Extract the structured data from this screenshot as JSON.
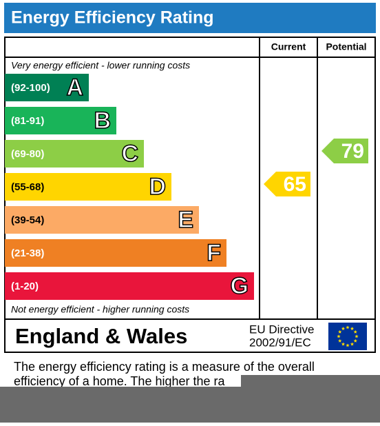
{
  "title": "Energy Efficiency Rating",
  "headers": {
    "current": "Current",
    "potential": "Potential"
  },
  "top_note": "Very energy efficient - lower running costs",
  "bottom_note": "Not energy efficient - higher running costs",
  "bands": [
    {
      "range": "(92-100)",
      "letter": "A",
      "color": "#008054"
    },
    {
      "range": "(81-91)",
      "letter": "B",
      "color": "#19b459"
    },
    {
      "range": "(69-80)",
      "letter": "C",
      "color": "#8dce46"
    },
    {
      "range": "(55-68)",
      "letter": "D",
      "color": "#ffd500"
    },
    {
      "range": "(39-54)",
      "letter": "E",
      "color": "#fcaa65"
    },
    {
      "range": "(21-38)",
      "letter": "F",
      "color": "#ef8023"
    },
    {
      "range": "(1-20)",
      "letter": "G",
      "color": "#e9153b"
    }
  ],
  "current": {
    "value": 65
  },
  "potential": {
    "value": 79
  },
  "footer": {
    "region": "England & Wales",
    "directive_line1": "EU Directive",
    "directive_line2": "2002/91/EC"
  },
  "description": {
    "line1": "The energy efficiency rating is a measure of the overall",
    "line2": "efficiency of a home.  The higher the ra"
  }
}
